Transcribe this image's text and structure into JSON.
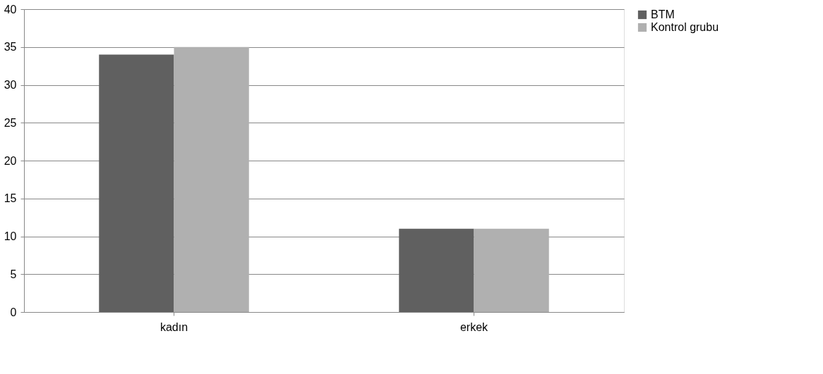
{
  "chart_data": {
    "type": "bar",
    "categories": [
      "kadın",
      "erkek"
    ],
    "series": [
      {
        "name": "BTM",
        "color": "#606060",
        "values": [
          34,
          11
        ]
      },
      {
        "name": "Kontrol grubu",
        "color": "#b0b0b0",
        "values": [
          35,
          11
        ]
      }
    ],
    "ylim": [
      0,
      40
    ],
    "yticks": [
      0,
      5,
      10,
      15,
      20,
      25,
      30,
      35,
      40
    ],
    "grid": "y",
    "legend": "right"
  }
}
